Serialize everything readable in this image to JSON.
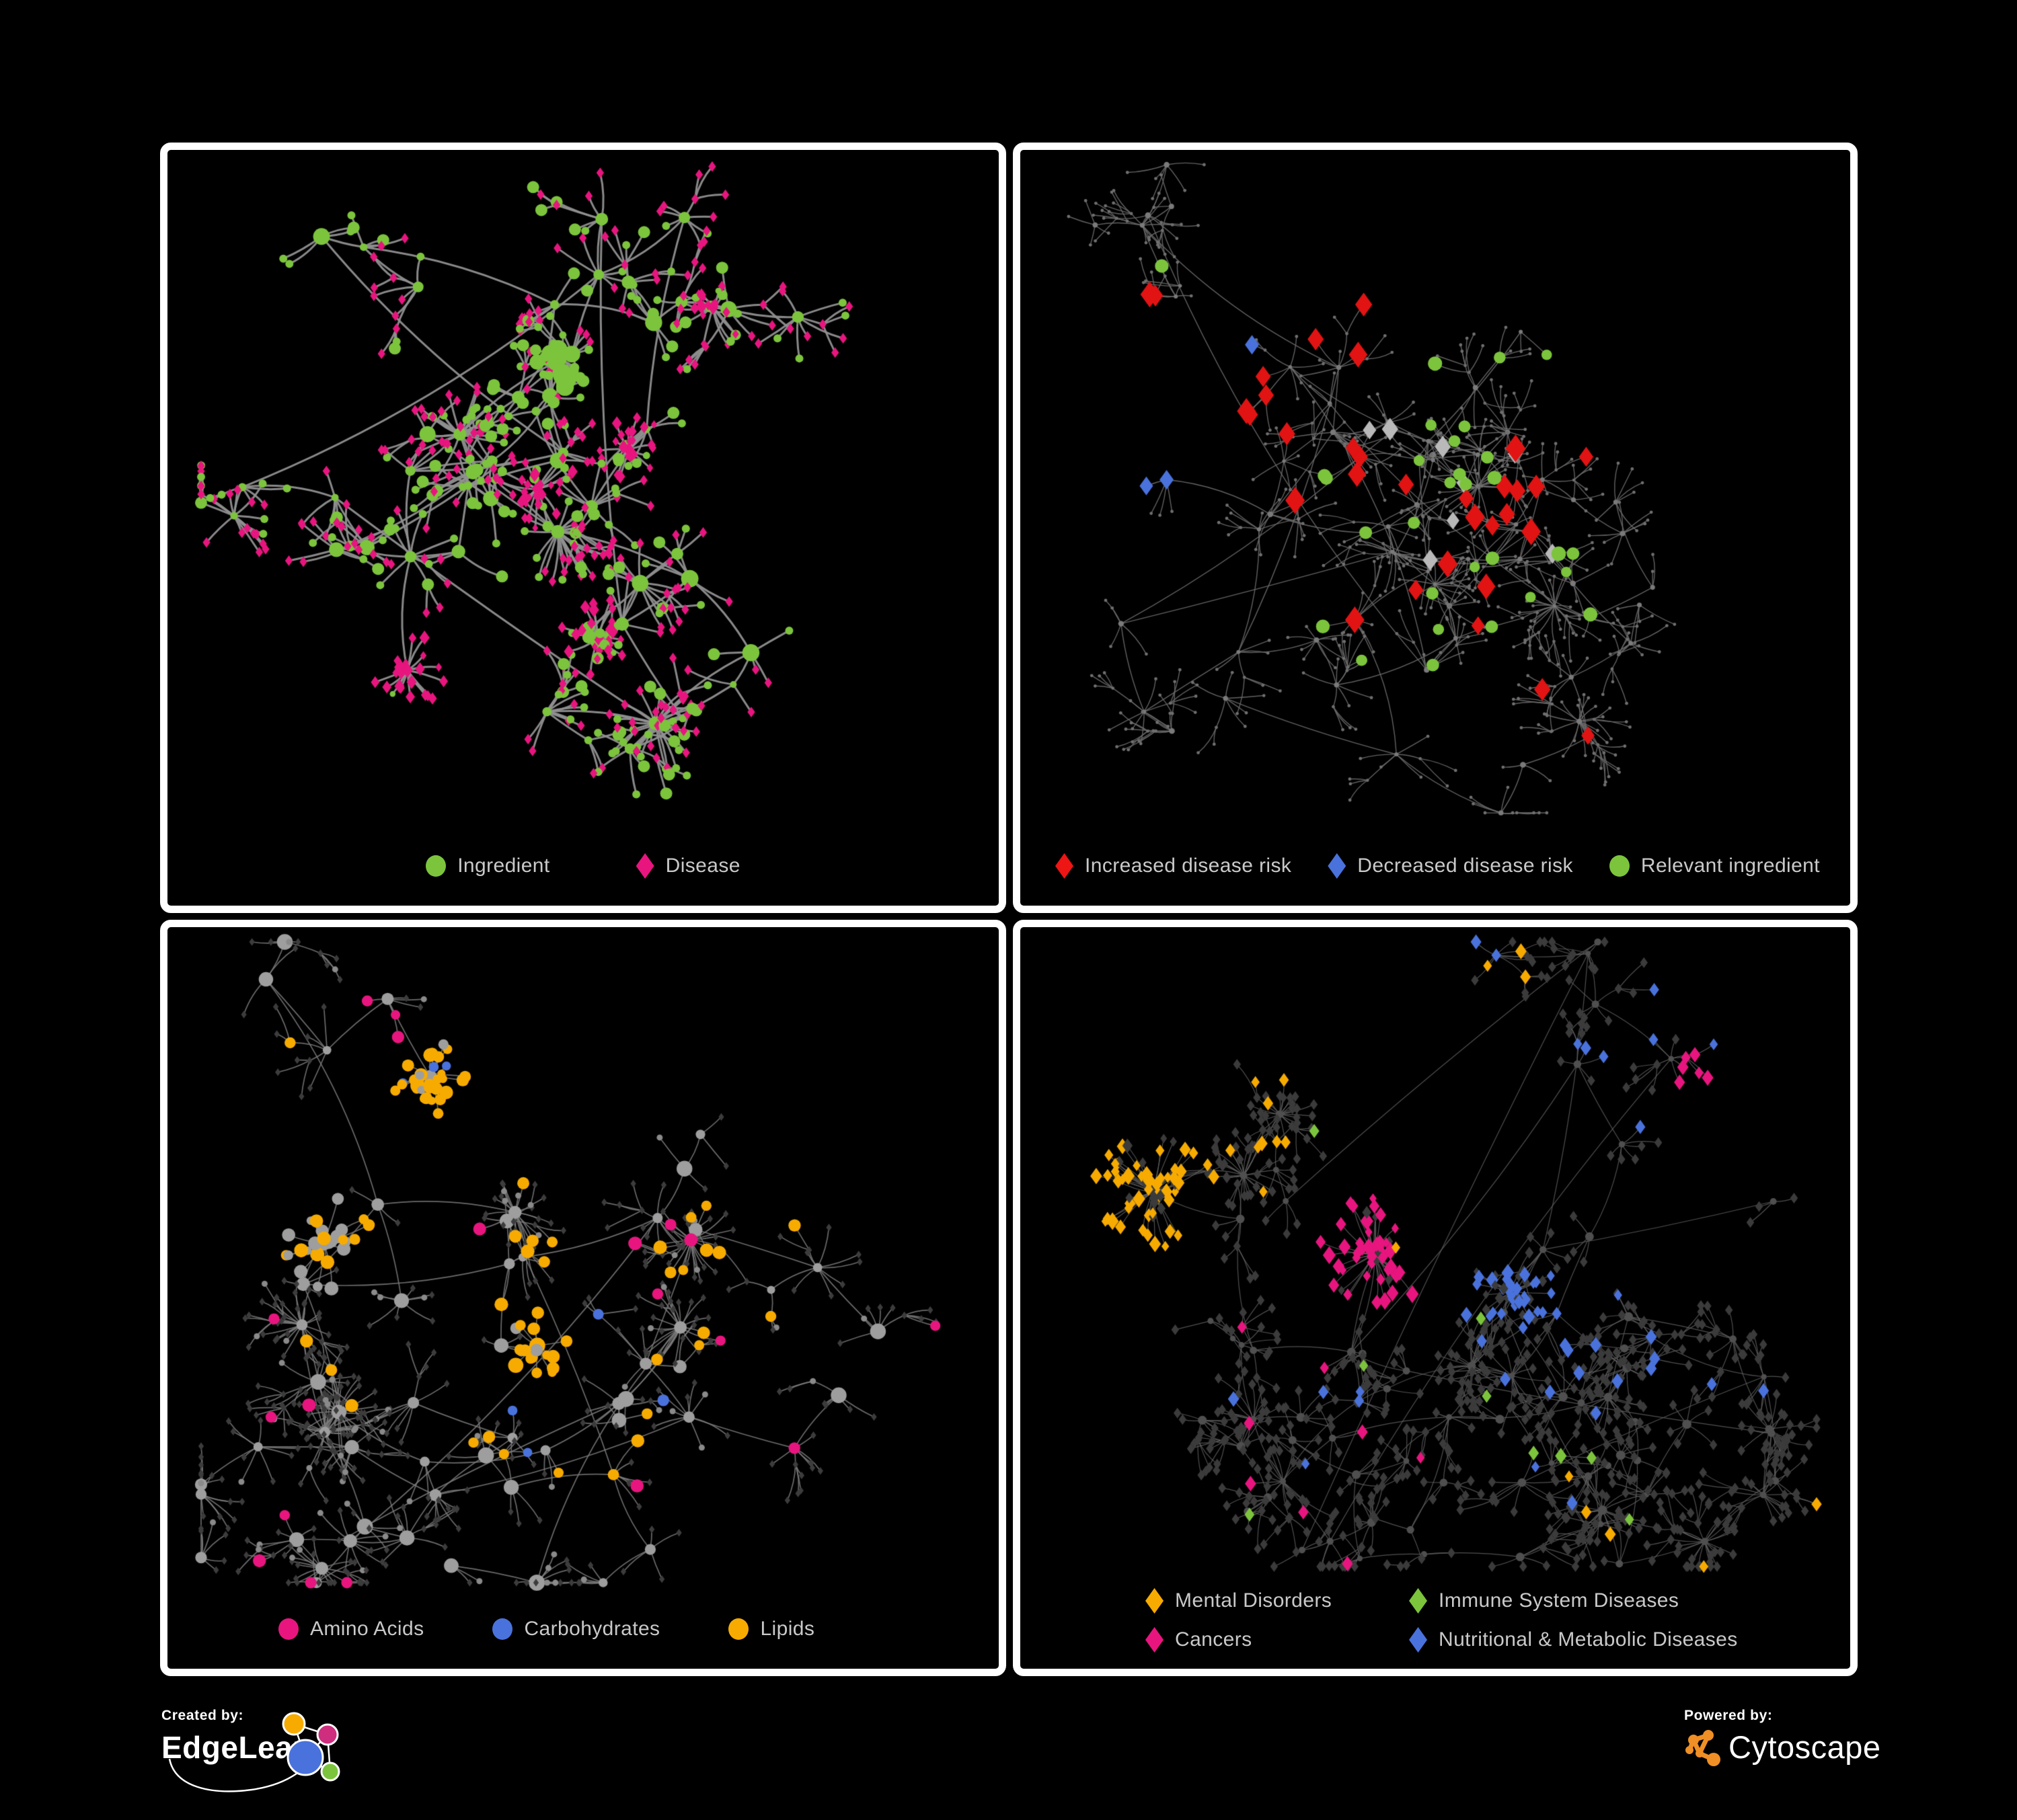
{
  "page": {
    "background": "#000000",
    "panel_border_color": "#ffffff",
    "legend_text_color": "#c9c9c9"
  },
  "palette": {
    "green": "#7cc43c",
    "magenta": "#e8157f",
    "red": "#ee1515",
    "blue": "#4a72dc",
    "orange": "#f7ab00",
    "light_gray": "#b9b9b9"
  },
  "panels": {
    "ingredient_disease": {
      "legend": [
        {
          "shape": "circle",
          "color": "#7cc43c",
          "label": "Ingredient"
        },
        {
          "shape": "diamond",
          "color": "#e8157f",
          "label": "Disease"
        }
      ],
      "network": {
        "seed": 11,
        "margins": {
          "l": 50,
          "r": 50,
          "t": 22,
          "b": 138
        },
        "hubs": 48,
        "starProb": 0.1,
        "leafDist": [
          26,
          75
        ],
        "subProb": 0.13,
        "hubStyle": {
          "shape": "circle",
          "color": "#7cc43c",
          "rmin": 5,
          "rmax": 13
        },
        "leafStyles": [
          {
            "shape": "diamond",
            "color": "#e8157f",
            "size": 6.3,
            "w": 0.58
          },
          {
            "shape": "circle",
            "color": "#7cc43c",
            "size": 6,
            "w": 0.28
          },
          {
            "shape": "circle",
            "color": "#7cc43c",
            "size": 9,
            "w": 0.14
          }
        ],
        "edge": {
          "color": "#909090",
          "width": 3.0,
          "alpha": 0.95
        },
        "bursts": [
          {
            "fx": 0.47,
            "fy": 0.3,
            "count": 24,
            "spread": 40,
            "styles": [
              {
                "shape": "circle",
                "color": "#7cc43c",
                "size": 7,
                "w": 0.7
              },
              {
                "shape": "circle",
                "color": "#7cc43c",
                "size": 12,
                "w": 0.3
              }
            ]
          },
          {
            "fx": 0.44,
            "fy": 0.5,
            "count": 26,
            "spread": 55,
            "styles": [
              {
                "shape": "diamond",
                "color": "#e8157f",
                "size": 6.5,
                "w": 0.8
              },
              {
                "shape": "circle",
                "color": "#7cc43c",
                "size": 6,
                "w": 0.2
              }
            ]
          },
          {
            "fx": 0.56,
            "fy": 0.44,
            "count": 20,
            "spread": 48,
            "styles": [
              {
                "shape": "diamond",
                "color": "#e8157f",
                "size": 6.5,
                "w": 0.85
              },
              {
                "shape": "circle",
                "color": "#7cc43c",
                "size": 6,
                "w": 0.15
              }
            ]
          },
          {
            "fx": 0.27,
            "fy": 0.78,
            "count": 22,
            "spread": 52,
            "styles": [
              {
                "shape": "diamond",
                "color": "#e8157f",
                "size": 6.5,
                "w": 0.9
              },
              {
                "shape": "circle",
                "color": "#7cc43c",
                "size": 5.5,
                "w": 0.1
              }
            ]
          },
          {
            "fx": 0.52,
            "fy": 0.73,
            "count": 24,
            "spread": 55,
            "styles": [
              {
                "shape": "diamond",
                "color": "#e8157f",
                "size": 6.5,
                "w": 0.85
              },
              {
                "shape": "circle",
                "color": "#7cc43c",
                "size": 6,
                "w": 0.15
              }
            ]
          },
          {
            "fx": 0.67,
            "fy": 0.22,
            "count": 16,
            "spread": 55,
            "styles": [
              {
                "shape": "diamond",
                "color": "#e8157f",
                "size": 6.2,
                "w": 0.8
              },
              {
                "shape": "circle",
                "color": "#7cc43c",
                "size": 6,
                "w": 0.2
              }
            ]
          }
        ],
        "highlights": []
      }
    },
    "disease_risk": {
      "legend": [
        {
          "shape": "diamond",
          "color": "#ee1515",
          "label": "Increased disease risk"
        },
        {
          "shape": "diamond",
          "color": "#4a72dc",
          "label": "Decreased disease risk"
        },
        {
          "shape": "circle",
          "color": "#7cc43c",
          "label": "Relevant ingredient"
        }
      ],
      "network": {
        "seed": 22,
        "margins": {
          "l": 50,
          "r": 50,
          "t": 22,
          "b": 138
        },
        "hubs": 72,
        "starProb": 0.12,
        "leafDist": [
          22,
          60
        ],
        "subProb": 0.18,
        "hubStyle": {
          "shape": "circle",
          "color": "#7a7a7a",
          "rmin": 2.5,
          "rmax": 4.5
        },
        "leafStyles": [
          {
            "shape": "circle",
            "color": "#6f6f6f",
            "size": 2.4,
            "w": 1
          }
        ],
        "edge": {
          "color": "#6c6c6c",
          "width": 1.4,
          "alpha": 0.9
        },
        "bursts": [],
        "highlights": [
          {
            "shape": "diamond",
            "color": "#e21313",
            "size": 14,
            "count": 24,
            "fx": 0.42,
            "fy": 0.38,
            "radius": 330
          },
          {
            "shape": "diamond",
            "color": "#e21313",
            "size": 13,
            "count": 5,
            "fx": 0.16,
            "fy": 0.32,
            "radius": 140
          },
          {
            "shape": "diamond",
            "color": "#e21313",
            "size": 12,
            "count": 3,
            "fx": 0.6,
            "fy": 0.82,
            "radius": 130
          },
          {
            "shape": "diamond",
            "color": "#4a72dc",
            "size": 13,
            "count": 6,
            "fx": 0.15,
            "fy": 0.36,
            "radius": 150
          },
          {
            "shape": "diamond",
            "color": "#4a72dc",
            "size": 12,
            "count": 2,
            "fx": 0.91,
            "fy": 0.36,
            "radius": 70
          },
          {
            "shape": "diamond",
            "color": "#b9b9b9",
            "size": 12,
            "count": 8,
            "fx": 0.38,
            "fy": 0.45,
            "radius": 400
          },
          {
            "shape": "circle",
            "color": "#7cc43c",
            "size": 9,
            "count": 26,
            "fx": 0.4,
            "fy": 0.4,
            "radius": 380
          },
          {
            "shape": "circle",
            "color": "#7cc43c",
            "size": 9,
            "count": 4,
            "fx": 0.7,
            "fy": 0.62,
            "radius": 90
          }
        ]
      }
    },
    "nutrient_classes": {
      "legend": [
        {
          "shape": "circle",
          "color": "#e8157f",
          "label": "Amino Acids"
        },
        {
          "shape": "circle",
          "color": "#4a72dc",
          "label": "Carbohydrates"
        },
        {
          "shape": "circle",
          "color": "#f7ab00",
          "label": "Lipids"
        }
      ],
      "network": {
        "seed": 33,
        "margins": {
          "l": 50,
          "r": 50,
          "t": 22,
          "b": 128
        },
        "hubs": 58,
        "starProb": 0.15,
        "leafDist": [
          24,
          65
        ],
        "subProb": 0.12,
        "hubStyle": {
          "shape": "circle",
          "color": "#9e9e9e",
          "rmin": 6,
          "rmax": 12
        },
        "leafStyles": [
          {
            "shape": "diamond",
            "color": "#3c3c3c",
            "size": 4.6,
            "w": 0.88
          },
          {
            "shape": "circle",
            "color": "#8a8a8a",
            "size": 4.5,
            "w": 0.12
          }
        ],
        "edge": {
          "color": "#7d7d7d",
          "width": 1.7,
          "alpha": 0.85
        },
        "bursts": [
          {
            "fx": 0.3,
            "fy": 0.21,
            "count": 34,
            "spread": 52,
            "styles": [
              {
                "shape": "circle",
                "color": "#f7ab00",
                "size": 8,
                "w": 0.6
              },
              {
                "shape": "circle",
                "color": "#4a72dc",
                "size": 7.5,
                "w": 0.18
              },
              {
                "shape": "circle",
                "color": "#9e9e9e",
                "size": 7,
                "w": 0.22
              }
            ]
          },
          {
            "fx": 0.16,
            "fy": 0.47,
            "count": 26,
            "spread": 70,
            "styles": [
              {
                "shape": "circle",
                "color": "#f7ab00",
                "size": 8,
                "w": 0.35
              },
              {
                "shape": "circle",
                "color": "#9e9e9e",
                "size": 8,
                "w": 0.65
              }
            ]
          },
          {
            "fx": 0.44,
            "fy": 0.63,
            "count": 18,
            "spread": 46,
            "styles": [
              {
                "shape": "circle",
                "color": "#f7ab00",
                "size": 8.5,
                "w": 0.8
              },
              {
                "shape": "circle",
                "color": "#9e9e9e",
                "size": 7,
                "w": 0.2
              }
            ]
          }
        ],
        "highlights": [
          {
            "shape": "circle",
            "color": "#f7ab00",
            "size": 8.5,
            "count": 22,
            "fx": 0.45,
            "fy": 0.35,
            "radius": 460
          },
          {
            "shape": "circle",
            "color": "#f7ab00",
            "size": 8.5,
            "count": 8,
            "fx": 0.6,
            "fy": 0.6,
            "radius": 260
          },
          {
            "shape": "circle",
            "color": "#e8157f",
            "size": 8.5,
            "count": 10,
            "fx": 0.35,
            "fy": 0.8,
            "radius": 430
          },
          {
            "shape": "circle",
            "color": "#e8157f",
            "size": 8.5,
            "count": 6,
            "fx": 0.75,
            "fy": 0.55,
            "radius": 290
          },
          {
            "shape": "circle",
            "color": "#e8157f",
            "size": 8,
            "count": 3,
            "fx": 0.3,
            "fy": 0.05,
            "radius": 130
          },
          {
            "shape": "circle",
            "color": "#4a72dc",
            "size": 8,
            "count": 4,
            "fx": 0.55,
            "fy": 0.68,
            "radius": 230
          },
          {
            "shape": "circle",
            "color": "#4a72dc",
            "size": 8,
            "count": 2,
            "fx": 0.04,
            "fy": 0.27,
            "radius": 80
          }
        ]
      }
    },
    "disease_classes": {
      "legend": [
        {
          "shape": "diamond",
          "color": "#f7ab00",
          "label": "Mental Disorders"
        },
        {
          "shape": "diamond",
          "color": "#7cc43c",
          "label": "Immune System Diseases"
        },
        {
          "shape": "diamond",
          "color": "#e8157f",
          "label": "Cancers"
        },
        {
          "shape": "diamond",
          "color": "#4a72dc",
          "label": "Nutritional & Metabolic Diseases"
        }
      ],
      "network": {
        "seed": 44,
        "margins": {
          "l": 50,
          "r": 50,
          "t": 22,
          "b": 152
        },
        "hubs": 78,
        "starProb": 0.14,
        "leafDist": [
          20,
          55
        ],
        "subProb": 0.15,
        "hubStyle": {
          "shape": "circle",
          "color": "#4f4f4f",
          "rmin": 4,
          "rmax": 7
        },
        "leafStyles": [
          {
            "shape": "diamond",
            "color": "#3b3b3b",
            "size": 6.4,
            "w": 1
          }
        ],
        "edge": {
          "color": "#646464",
          "width": 1.2,
          "alpha": 0.8
        },
        "bursts": [
          {
            "fx": 0.13,
            "fy": 0.4,
            "count": 60,
            "spread": 85,
            "styles": [
              {
                "shape": "diamond",
                "color": "#f7ab00",
                "size": 8,
                "w": 0.75
              },
              {
                "shape": "diamond",
                "color": "#3b3b3b",
                "size": 6.4,
                "w": 0.25
              }
            ]
          },
          {
            "fx": 0.42,
            "fy": 0.5,
            "count": 45,
            "spread": 80,
            "styles": [
              {
                "shape": "diamond",
                "color": "#e8157f",
                "size": 8,
                "w": 0.7
              },
              {
                "shape": "diamond",
                "color": "#3b3b3b",
                "size": 6.4,
                "w": 0.3
              }
            ]
          },
          {
            "fx": 0.6,
            "fy": 0.56,
            "count": 34,
            "spread": 60,
            "styles": [
              {
                "shape": "diamond",
                "color": "#4a72dc",
                "size": 8,
                "w": 0.75
              },
              {
                "shape": "diamond",
                "color": "#3b3b3b",
                "size": 6.4,
                "w": 0.25
              }
            ]
          }
        ],
        "highlights": [
          {
            "shape": "diamond",
            "color": "#f7ab00",
            "size": 8,
            "count": 14,
            "fx": 0.3,
            "fy": 0.15,
            "radius": 390
          },
          {
            "shape": "diamond",
            "color": "#f7ab00",
            "size": 8,
            "count": 5,
            "fx": 0.8,
            "fy": 0.8,
            "radius": 260
          },
          {
            "shape": "diamond",
            "color": "#4a72dc",
            "size": 8,
            "count": 26,
            "fx": 0.75,
            "fy": 0.3,
            "radius": 440
          },
          {
            "shape": "diamond",
            "color": "#4a72dc",
            "size": 8,
            "count": 10,
            "fx": 0.35,
            "fy": 0.85,
            "radius": 390
          },
          {
            "shape": "diamond",
            "color": "#e8157f",
            "size": 8,
            "count": 8,
            "fx": 0.92,
            "fy": 0.2,
            "radius": 120
          },
          {
            "shape": "diamond",
            "color": "#e8157f",
            "size": 8,
            "count": 8,
            "fx": 0.25,
            "fy": 0.88,
            "radius": 310
          },
          {
            "shape": "diamond",
            "color": "#7cc43c",
            "size": 8,
            "count": 9,
            "fx": 0.5,
            "fy": 0.45,
            "radius": 530
          }
        ]
      }
    }
  },
  "footer": {
    "created_by_label": "Created by:",
    "edgeleap_brand": "EdgeLeap",
    "powered_by_label": "Powered by:",
    "cytoscape_brand": "Cytoscape",
    "cytoscape_orange": "#ef8f25",
    "edgeleap_logo_colors": {
      "orange": "#f7ab00",
      "pink": "#cf2d7e",
      "blue": "#4a72dc",
      "green": "#7cc43c"
    }
  }
}
